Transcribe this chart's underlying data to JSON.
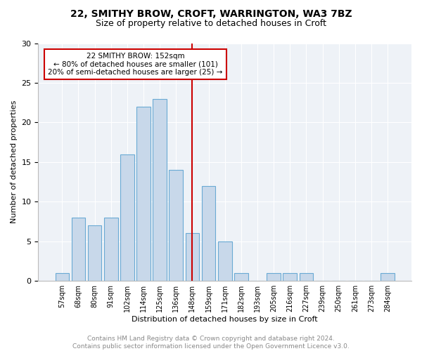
{
  "title": "22, SMITHY BROW, CROFT, WARRINGTON, WA3 7BZ",
  "subtitle": "Size of property relative to detached houses in Croft",
  "xlabel": "Distribution of detached houses by size in Croft",
  "ylabel": "Number of detached properties",
  "bar_labels": [
    "57sqm",
    "68sqm",
    "80sqm",
    "91sqm",
    "102sqm",
    "114sqm",
    "125sqm",
    "136sqm",
    "148sqm",
    "159sqm",
    "171sqm",
    "182sqm",
    "193sqm",
    "205sqm",
    "216sqm",
    "227sqm",
    "239sqm",
    "250sqm",
    "261sqm",
    "273sqm",
    "284sqm"
  ],
  "bar_values": [
    1,
    8,
    7,
    8,
    16,
    22,
    23,
    14,
    6,
    12,
    5,
    1,
    0,
    1,
    1,
    1,
    0,
    0,
    0,
    0,
    1
  ],
  "bar_color": "#c8d8ea",
  "bar_edge_color": "#6aaad4",
  "vline_x_idx": 8,
  "vline_color": "#cc0000",
  "annotation_text": "22 SMITHY BROW: 152sqm\n← 80% of detached houses are smaller (101)\n20% of semi-detached houses are larger (25) →",
  "annotation_box_color": "#ffffff",
  "annotation_box_edge": "#cc0000",
  "ylim": [
    0,
    30
  ],
  "yticks": [
    0,
    5,
    10,
    15,
    20,
    25,
    30
  ],
  "footer": "Contains HM Land Registry data © Crown copyright and database right 2024.\nContains public sector information licensed under the Open Government Licence v3.0.",
  "plot_bg_color": "#eef2f7",
  "fig_bg_color": "#ffffff",
  "grid_color": "#ffffff",
  "title_fontsize": 10,
  "subtitle_fontsize": 9,
  "footer_fontsize": 6.5,
  "ylabel_fontsize": 8,
  "xlabel_fontsize": 8,
  "ytick_fontsize": 8,
  "xtick_fontsize": 7
}
